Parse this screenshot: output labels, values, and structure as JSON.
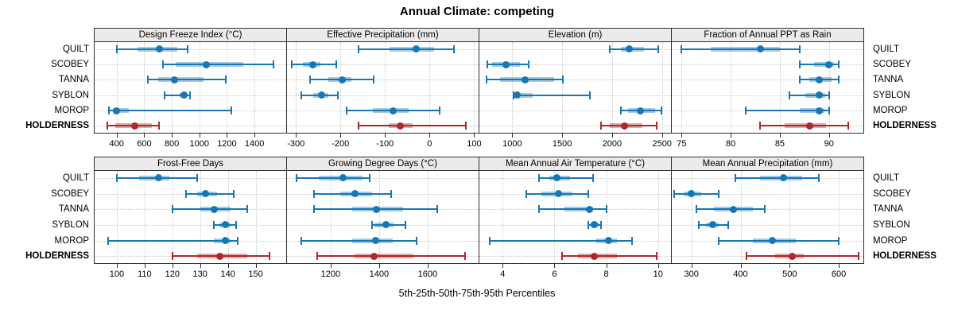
{
  "title": "Annual Climate: competing",
  "xlabel": "5th-25th-50th-75th-95th Percentiles",
  "colors": {
    "series_blue": "#1777b6",
    "highlight_red": "#b22626",
    "strip_background": "#ebebeb",
    "panel_border": "#2e2e2e",
    "gridline": "#c9c9c9"
  },
  "chart_data": {
    "type": "scatter",
    "subtype": "percentile-interval-dotplot",
    "title": "Annual Climate: competing",
    "xlabel": "5th-25th-50th-75th-95th Percentiles",
    "layout": {
      "rows": 2,
      "cols": 4,
      "grid": "dotted",
      "site_labels": "both-sides"
    },
    "percentile_keys": [
      "p5",
      "p25",
      "p50",
      "p75",
      "p95"
    ],
    "sites": [
      {
        "label": "QUILT",
        "highlight": false
      },
      {
        "label": "SCOBEY",
        "highlight": false
      },
      {
        "label": "TANNA",
        "highlight": false
      },
      {
        "label": "SYBLON",
        "highlight": false
      },
      {
        "label": "MOROP",
        "highlight": false
      },
      {
        "label": "HOLDERNESS",
        "highlight": true
      }
    ],
    "panels": [
      {
        "title": "Design Freeze Index (°C)",
        "row": 0,
        "col": 0,
        "xlim": [
          240,
          1630
        ],
        "ticks": [
          400,
          600,
          800,
          1000,
          1200,
          1400
        ],
        "series": [
          {
            "site": "QUILT",
            "values": [
              400,
              550,
              710,
              840,
              915
            ]
          },
          {
            "site": "SCOBEY",
            "values": [
              735,
              830,
              1050,
              1320,
              1535
            ]
          },
          {
            "site": "TANNA",
            "values": [
              625,
              700,
              820,
              1030,
              1190
            ]
          },
          {
            "site": "SYBLON",
            "values": [
              745,
              855,
              890,
              910,
              930
            ]
          },
          {
            "site": "MOROP",
            "values": [
              345,
              375,
              400,
              490,
              1230
            ]
          },
          {
            "site": "HOLDERNESS",
            "values": [
              330,
              390,
              530,
              655,
              710
            ]
          }
        ]
      },
      {
        "title": "Effective Precipitation (mm)",
        "row": 0,
        "col": 1,
        "xlim": [
          -320,
          110
        ],
        "ticks": [
          -300,
          -200,
          -100,
          0,
          100
        ],
        "series": [
          {
            "site": "QUILT",
            "values": [
              -160,
              -90,
              -30,
              10,
              55
            ]
          },
          {
            "site": "SCOBEY",
            "values": [
              -310,
              -285,
              -262,
              -245,
              -210
            ]
          },
          {
            "site": "TANNA",
            "values": [
              -268,
              -228,
              -196,
              -175,
              -125
            ]
          },
          {
            "site": "SYBLON",
            "values": [
              -288,
              -262,
              -243,
              -228,
              -206
            ]
          },
          {
            "site": "MOROP",
            "values": [
              -186,
              -127,
              -82,
              -47,
              22
            ]
          },
          {
            "site": "HOLDERNESS",
            "values": [
              -160,
              -92,
              -66,
              -38,
              82
            ]
          }
        ]
      },
      {
        "title": "Elevation (m)",
        "row": 0,
        "col": 2,
        "xlim": [
          670,
          2590
        ],
        "ticks": [
          1000,
          1500,
          2000,
          2500
        ],
        "series": [
          {
            "site": "QUILT",
            "values": [
              1975,
              2090,
              2170,
              2320,
              2465
            ]
          },
          {
            "site": "SCOBEY",
            "values": [
              750,
              800,
              935,
              1080,
              1160
            ]
          },
          {
            "site": "TANNA",
            "values": [
              745,
              880,
              1130,
              1420,
              1505
            ]
          },
          {
            "site": "SYBLON",
            "values": [
              1010,
              1025,
              1045,
              1200,
              1775
            ]
          },
          {
            "site": "MOROP",
            "values": [
              2090,
              2160,
              2280,
              2430,
              2495
            ]
          },
          {
            "site": "HOLDERNESS",
            "values": [
              1890,
              1975,
              2120,
              2300,
              2450
            ]
          }
        ]
      },
      {
        "title": "Fraction of Annual PPT as Rain",
        "row": 0,
        "col": 3,
        "xlim": [
          74,
          93.5
        ],
        "ticks": [
          75,
          80,
          85,
          90
        ],
        "series": [
          {
            "site": "QUILT",
            "values": [
              75,
              78,
              83,
              85,
              87
            ]
          },
          {
            "site": "SCOBEY",
            "values": [
              87,
              88.5,
              90,
              90.5,
              91
            ]
          },
          {
            "site": "TANNA",
            "values": [
              87,
              88,
              89,
              90.3,
              91
            ]
          },
          {
            "site": "SYBLON",
            "values": [
              86,
              87.6,
              89,
              89.6,
              90
            ]
          },
          {
            "site": "MOROP",
            "values": [
              81.5,
              87,
              89,
              89.5,
              90
            ]
          },
          {
            "site": "HOLDERNESS",
            "values": [
              83,
              85.5,
              88,
              89.7,
              92
            ]
          }
        ]
      },
      {
        "title": "Frost-Free Days",
        "row": 1,
        "col": 0,
        "xlim": [
          92,
          161
        ],
        "ticks": [
          100,
          110,
          120,
          130,
          140,
          150
        ],
        "series": [
          {
            "site": "QUILT",
            "values": [
              100,
              108,
              115,
              119,
              129
            ]
          },
          {
            "site": "SCOBEY",
            "values": [
              125,
              129,
              132,
              136,
              142
            ]
          },
          {
            "site": "TANNA",
            "values": [
              120,
              130,
              135,
              141,
              147
            ]
          },
          {
            "site": "SYBLON",
            "values": [
              135,
              137,
              139,
              141,
              143
            ]
          },
          {
            "site": "MOROP",
            "values": [
              97,
              135,
              139,
              141,
              143.5
            ]
          },
          {
            "site": "HOLDERNESS",
            "values": [
              120,
              129,
              137,
              147,
              155
            ]
          }
        ]
      },
      {
        "title": "Growing Degree Days (°C)",
        "row": 1,
        "col": 1,
        "xlim": [
          1020,
          1810
        ],
        "ticks": [
          1200,
          1400,
          1600
        ],
        "series": [
          {
            "site": "QUILT",
            "values": [
              1060,
              1150,
              1252,
              1330,
              1360
            ]
          },
          {
            "site": "SCOBEY",
            "values": [
              1130,
              1240,
              1300,
              1370,
              1450
            ]
          },
          {
            "site": "TANNA",
            "values": [
              1130,
              1290,
              1390,
              1500,
              1640
            ]
          },
          {
            "site": "SYBLON",
            "values": [
              1370,
              1380,
              1428,
              1460,
              1510
            ]
          },
          {
            "site": "MOROP",
            "values": [
              1080,
              1290,
              1385,
              1455,
              1555
            ]
          },
          {
            "site": "HOLDERNESS",
            "values": [
              1145,
              1300,
              1380,
              1540,
              1755
            ]
          }
        ]
      },
      {
        "title": "Mean Annual Air Temperature (°C)",
        "row": 1,
        "col": 2,
        "xlim": [
          3.1,
          10.5
        ],
        "ticks": [
          4,
          6,
          8,
          10
        ],
        "series": [
          {
            "site": "QUILT",
            "values": [
              5.4,
              5.8,
              6.1,
              6.6,
              7.5
            ]
          },
          {
            "site": "SCOBEY",
            "values": [
              4.9,
              5.5,
              6.15,
              6.7,
              7.3
            ]
          },
          {
            "site": "TANNA",
            "values": [
              5.4,
              6.4,
              7.35,
              7.5,
              8.0
            ]
          },
          {
            "site": "SYBLON",
            "values": [
              7.3,
              7.4,
              7.55,
              7.7,
              7.8
            ]
          },
          {
            "site": "MOROP",
            "values": [
              3.5,
              7.6,
              8.1,
              8.4,
              9.0
            ]
          },
          {
            "site": "HOLDERNESS",
            "values": [
              6.3,
              6.9,
              7.55,
              8.4,
              9.95
            ]
          }
        ]
      },
      {
        "title": "Mean Annual Precipitation (mm)",
        "row": 1,
        "col": 3,
        "xlim": [
          260,
          650
        ],
        "ticks": [
          300,
          400,
          500,
          600
        ],
        "series": [
          {
            "site": "QUILT",
            "values": [
              390,
              440,
              488,
              525,
              560
            ]
          },
          {
            "site": "SCOBEY",
            "values": [
              265,
              285,
              300,
              320,
              355
            ]
          },
          {
            "site": "TANNA",
            "values": [
              310,
              345,
              385,
              425,
              450
            ]
          },
          {
            "site": "SYBLON",
            "values": [
              315,
              330,
              343,
              355,
              375
            ]
          },
          {
            "site": "MOROP",
            "values": [
              355,
              425,
              465,
              512,
              600
            ]
          },
          {
            "site": "HOLDERNESS",
            "values": [
              412,
              470,
              505,
              528,
              640
            ]
          }
        ]
      }
    ]
  }
}
